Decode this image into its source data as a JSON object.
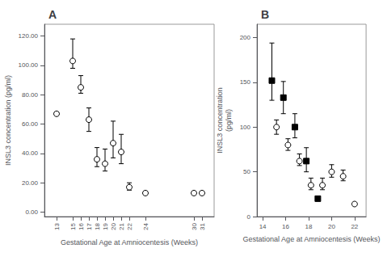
{
  "chart_data": [
    {
      "type": "scatter",
      "title": "A",
      "xlabel": "Gestational Age at Amniocentesis (Weeks)",
      "ylabel": "INSL3 concentration (pg/ml)",
      "xlim": [
        11.5,
        32.5
      ],
      "ylim": [
        -3,
        128
      ],
      "xticks": [
        13,
        15,
        16,
        17,
        18,
        19,
        20,
        21,
        22,
        24,
        30,
        31
      ],
      "yticks": [
        {
          "value": 0,
          "label": "0.00"
        },
        {
          "value": 20,
          "label": "20.00"
        },
        {
          "value": 40,
          "label": "40.00"
        },
        {
          "value": 60,
          "label": "60.00"
        },
        {
          "value": 80,
          "label": "80.00"
        },
        {
          "value": 100,
          "label": "100.00"
        },
        {
          "value": 120,
          "label": "120.00"
        }
      ],
      "grid": false,
      "series": [
        {
          "marker": "circle",
          "color": "#ffffff",
          "x": [
            13,
            15,
            16,
            17,
            18,
            19,
            20,
            21,
            22,
            24,
            30,
            31
          ],
          "values": [
            67,
            103,
            85,
            63,
            36,
            33,
            47,
            41,
            17,
            13,
            13,
            13
          ],
          "yerr_low": [
            0,
            5,
            4,
            8,
            5,
            5,
            10,
            8,
            2,
            0,
            0,
            0
          ],
          "yerr_high": [
            0,
            15,
            8,
            8,
            8,
            10,
            15,
            12,
            3,
            0,
            0,
            0
          ]
        }
      ]
    },
    {
      "type": "scatter",
      "title": "B",
      "xlabel": "Gestational Age at Amniocentesis (Weeks)",
      "ylabel": "INSL3 concentration\n(pg/ml)",
      "xlim": [
        13.5,
        23.0
      ],
      "ylim": [
        0,
        215
      ],
      "xticks": [
        14,
        16,
        18,
        20,
        22
      ],
      "yticks": [
        0,
        50,
        100,
        150,
        200
      ],
      "grid": false,
      "series": [
        {
          "marker": "circle",
          "color": "#ffffff",
          "x": [
            15.2,
            16.2,
            17.2,
            18.2,
            19.2,
            20.0,
            21.0,
            22.0
          ],
          "values": [
            100,
            80,
            62,
            35,
            35,
            50,
            45,
            14
          ],
          "yerr_low": [
            8,
            6,
            5,
            5,
            5,
            6,
            5,
            0
          ],
          "yerr_high": [
            8,
            7,
            8,
            8,
            8,
            8,
            7,
            0
          ]
        },
        {
          "marker": "square",
          "color": "#000000",
          "x": [
            14.8,
            15.8,
            16.8,
            17.8,
            18.8
          ],
          "values": [
            152,
            133,
            100,
            62,
            20
          ],
          "yerr_low": [
            22,
            18,
            12,
            12,
            0
          ],
          "yerr_high": [
            42,
            18,
            15,
            15,
            0
          ]
        }
      ]
    }
  ]
}
